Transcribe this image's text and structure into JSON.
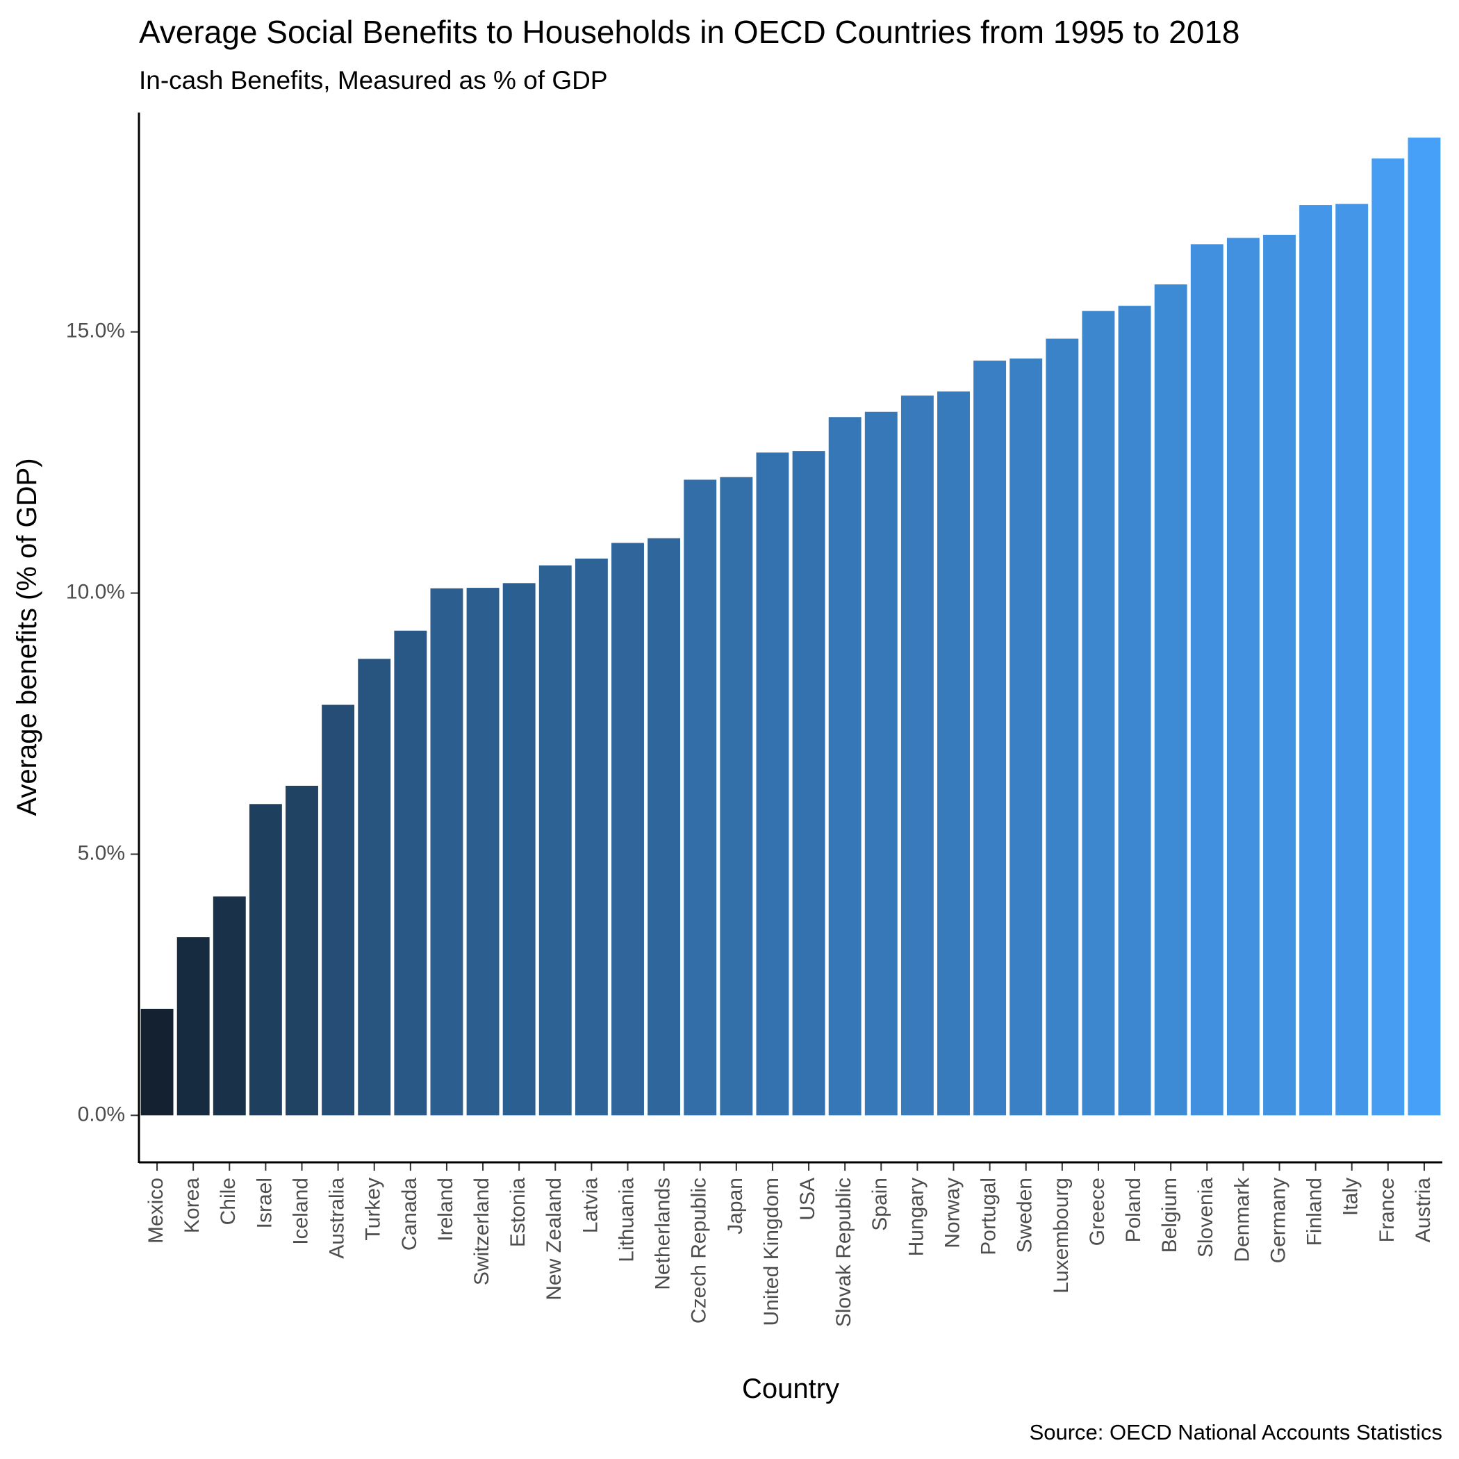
{
  "chart_data": {
    "type": "bar",
    "title": "Average Social Benefits to Households in OECD Countries from 1995 to 2018",
    "subtitle": "In-cash Benefits, Measured as % of GDP",
    "xlabel": "Country",
    "ylabel": "Average benefits (% of GDP)",
    "caption": "Source: OECD National Accounts Statistics",
    "ylim": [
      -0.9,
      19.2
    ],
    "yticks": [
      0,
      5,
      10,
      15
    ],
    "ytick_labels": [
      "0.0%",
      "5.0%",
      "10.0%",
      "15.0%"
    ],
    "grid": false,
    "legend": "none",
    "color_low": "#132130",
    "color_high": "#47a0f7",
    "categories": [
      "Mexico",
      "Korea",
      "Chile",
      "Israel",
      "Iceland",
      "Australia",
      "Turkey",
      "Canada",
      "Ireland",
      "Switzerland",
      "Estonia",
      "New Zealand",
      "Latvia",
      "Lithuania",
      "Netherlands",
      "Czech Republic",
      "Japan",
      "United Kingdom",
      "USA",
      "Slovak Republic",
      "Spain",
      "Hungary",
      "Norway",
      "Portugal",
      "Sweden",
      "Luxembourg",
      "Greece",
      "Poland",
      "Belgium",
      "Slovenia",
      "Denmark",
      "Germany",
      "Finland",
      "Italy",
      "France",
      "Austria"
    ],
    "values": [
      2.04,
      3.41,
      4.19,
      5.96,
      6.31,
      7.86,
      8.74,
      9.28,
      10.09,
      10.1,
      10.19,
      10.53,
      10.66,
      10.96,
      11.05,
      12.17,
      12.22,
      12.69,
      12.72,
      13.37,
      13.47,
      13.78,
      13.86,
      14.45,
      14.49,
      14.87,
      15.4,
      15.5,
      15.91,
      16.68,
      16.8,
      16.86,
      17.43,
      17.45,
      18.32,
      18.72
    ]
  }
}
